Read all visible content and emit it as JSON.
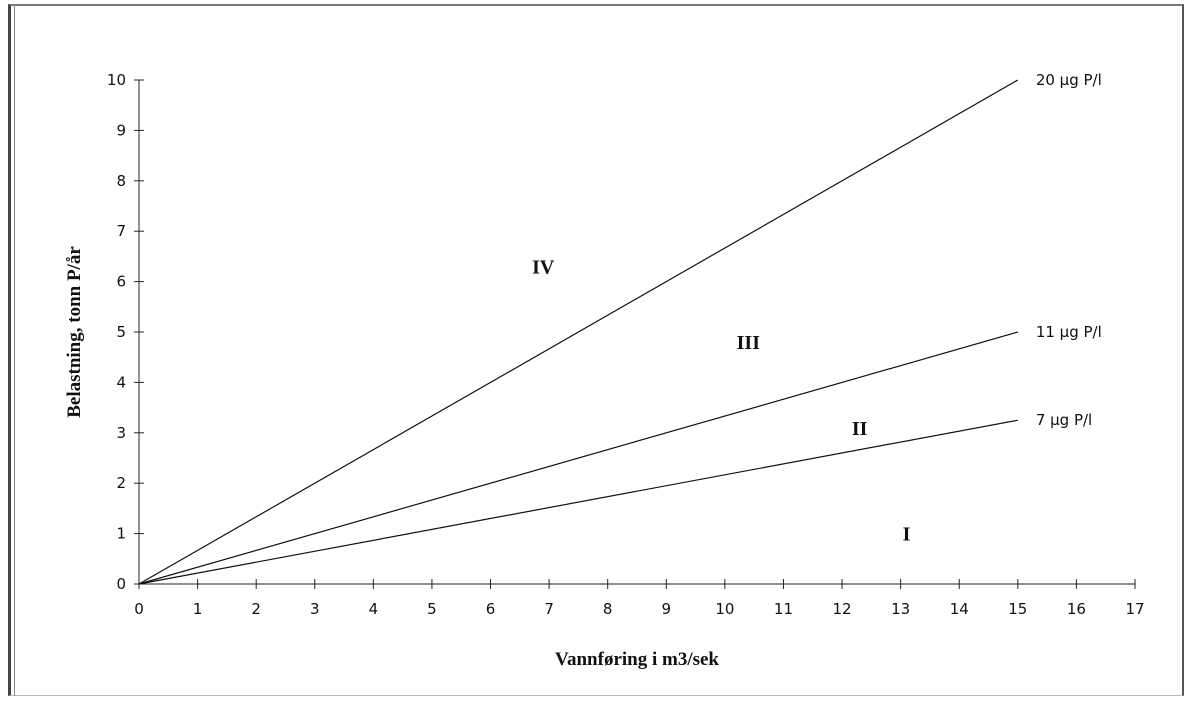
{
  "chart_data": {
    "type": "line",
    "title": "",
    "xlabel": "Vannføring i m3/sek",
    "ylabel": "Belastning, tonn P/år",
    "xlim": [
      0,
      17
    ],
    "ylim": [
      0,
      10
    ],
    "x_ticks": [
      "0",
      "1",
      "2",
      "3",
      "4",
      "5",
      "6",
      "7",
      "8",
      "9",
      "10",
      "11",
      "12",
      "13",
      "14",
      "15",
      "16",
      "17"
    ],
    "y_ticks": [
      "0",
      "1",
      "2",
      "3",
      "4",
      "5",
      "6",
      "7",
      "8",
      "9",
      "10"
    ],
    "grid": false,
    "legend": "none",
    "series": [
      {
        "name": "20 µg P/l",
        "x": [
          0,
          15
        ],
        "y": [
          0,
          10.0
        ]
      },
      {
        "name": "11 µg P/l",
        "x": [
          0,
          15
        ],
        "y": [
          0,
          5.0
        ]
      },
      {
        "name": "7 µg P/l",
        "x": [
          0,
          15
        ],
        "y": [
          0,
          3.25
        ]
      }
    ],
    "annotations": [
      {
        "text": "IV",
        "x": 6.9,
        "y": 6.3
      },
      {
        "text": "III",
        "x": 10.4,
        "y": 4.8
      },
      {
        "text": "II",
        "x": 12.3,
        "y": 3.1
      },
      {
        "text": "I",
        "x": 13.1,
        "y": 1.0
      }
    ]
  }
}
